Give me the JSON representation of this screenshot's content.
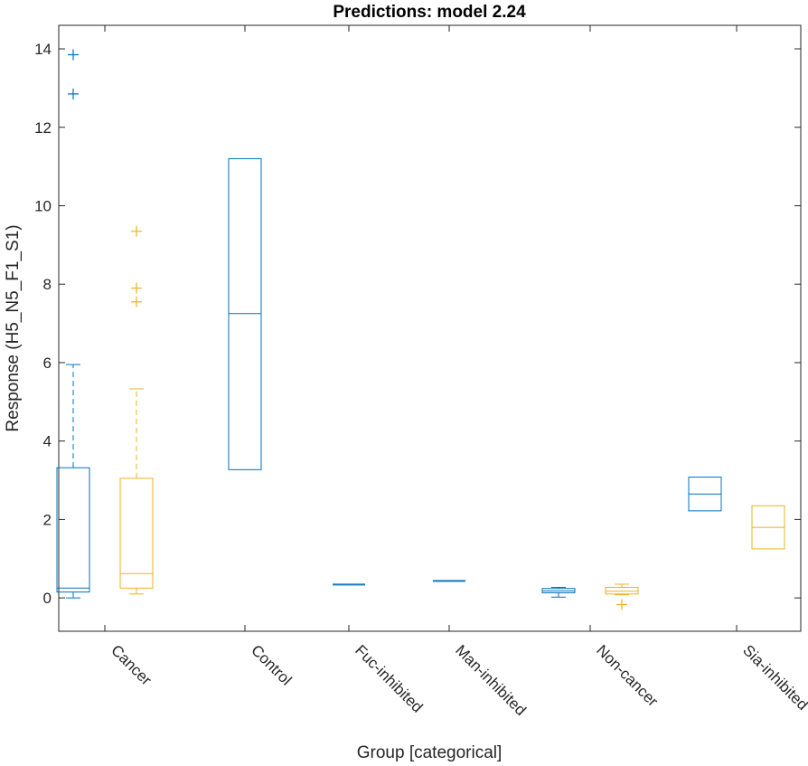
{
  "chart_data": {
    "type": "box",
    "title": "Predictions: model 2.24",
    "xlabel": "Group [categorical]",
    "ylabel": "Response (H5_N5_F1_S1)",
    "ylim": [
      -0.85,
      14.6
    ],
    "yticks": [
      0,
      2,
      4,
      6,
      8,
      10,
      12,
      14
    ],
    "grid": false,
    "categories": [
      "Cancer",
      "Control",
      "Fuc-inhibited",
      "Man-inhibited",
      "Non-cancer",
      "Sia-inhibited"
    ],
    "colors": {
      "series_a": "#0072BD",
      "series_b": "#EDB120",
      "axis": "#262626"
    },
    "boxes": [
      {
        "category": "Cancer",
        "series": "a",
        "whisker_low": 0.0,
        "q1": 0.15,
        "median": 0.25,
        "q3": 3.32,
        "whisker_high": 5.95,
        "outliers": [
          12.85,
          13.85
        ]
      },
      {
        "category": "Cancer",
        "series": "b",
        "whisker_low": 0.1,
        "q1": 0.25,
        "median": 0.62,
        "q3": 3.05,
        "whisker_high": 5.33,
        "outliers": [
          7.55,
          7.9,
          9.35
        ]
      },
      {
        "category": "Control",
        "series": "a",
        "whisker_low": 3.27,
        "q1": 3.27,
        "median": 7.25,
        "q3": 11.2,
        "whisker_high": 11.2,
        "outliers": []
      },
      {
        "category": "Fuc-inhibited",
        "series": "a",
        "whisker_low": 0.33,
        "q1": 0.33,
        "median": 0.33,
        "q3": 0.33,
        "whisker_high": 0.33,
        "outliers": []
      },
      {
        "category": "Man-inhibited",
        "series": "a",
        "whisker_low": 0.42,
        "q1": 0.42,
        "median": 0.42,
        "q3": 0.42,
        "whisker_high": 0.42,
        "outliers": []
      },
      {
        "category": "Non-cancer",
        "series": "a",
        "whisker_low": 0.02,
        "q1": 0.13,
        "median": 0.18,
        "q3": 0.24,
        "whisker_high": 0.27,
        "outliers": []
      },
      {
        "category": "Non-cancer",
        "series": "b",
        "whisker_low": 0.08,
        "q1": 0.1,
        "median": 0.17,
        "q3": 0.27,
        "whisker_high": 0.35,
        "outliers": [
          -0.17
        ]
      },
      {
        "category": "Sia-inhibited",
        "series": "a",
        "whisker_low": 2.22,
        "q1": 2.22,
        "median": 2.65,
        "q3": 3.08,
        "whisker_high": 3.08,
        "outliers": []
      },
      {
        "category": "Sia-inhibited",
        "series": "b",
        "whisker_low": 1.25,
        "q1": 1.25,
        "median": 1.8,
        "q3": 2.35,
        "whisker_high": 2.35,
        "outliers": []
      }
    ]
  }
}
